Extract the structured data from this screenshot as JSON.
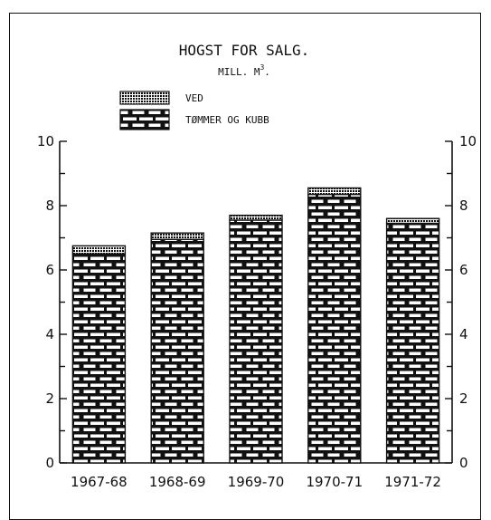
{
  "chart_data": {
    "type": "bar",
    "title": "HOGST FOR SALG.",
    "subtitle_prefix": "MILL. M",
    "subtitle_sup": "3",
    "subtitle_suffix": ".",
    "categories": [
      "1967-68",
      "1968-69",
      "1969-70",
      "1970-71",
      "1971-72"
    ],
    "series": [
      {
        "name": "TØMMER OG KUBB",
        "values": [
          6.5,
          6.95,
          7.55,
          8.35,
          7.45
        ]
      },
      {
        "name": "VED",
        "values": [
          0.25,
          0.2,
          0.15,
          0.2,
          0.15
        ]
      }
    ],
    "ylim": [
      0,
      10
    ],
    "yticks": [
      "0",
      "2",
      "4",
      "6",
      "8",
      "10"
    ],
    "legend_position": "top-left",
    "grid": false
  }
}
